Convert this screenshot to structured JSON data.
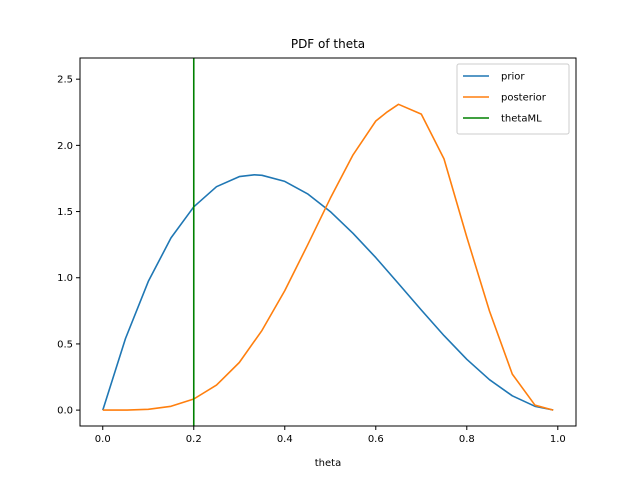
{
  "chart_data": {
    "type": "line",
    "title": "PDF of theta",
    "xlabel": "theta",
    "ylabel": "",
    "xlim": [
      -0.05,
      1.04
    ],
    "ylim": [
      -0.12,
      2.66
    ],
    "xticks": [
      0.0,
      0.2,
      0.4,
      0.6,
      0.8,
      1.0
    ],
    "xtick_labels": [
      "0.0",
      "0.2",
      "0.4",
      "0.6",
      "0.8",
      "1.0"
    ],
    "yticks": [
      0.0,
      0.5,
      1.0,
      1.5,
      2.0,
      2.5
    ],
    "ytick_labels": [
      "0.0",
      "0.5",
      "1.0",
      "1.5",
      "2.0",
      "2.5"
    ],
    "grid": false,
    "legend_position": "top-right",
    "series": [
      {
        "name": "prior",
        "color": "#1f77b4",
        "x": [
          0.0,
          0.05,
          0.1,
          0.15,
          0.2,
          0.25,
          0.3,
          0.333,
          0.35,
          0.4,
          0.45,
          0.5,
          0.55,
          0.6,
          0.65,
          0.7,
          0.75,
          0.8,
          0.85,
          0.9,
          0.95,
          0.99
        ],
        "y": [
          0.0,
          0.541,
          0.972,
          1.301,
          1.536,
          1.688,
          1.764,
          1.778,
          1.774,
          1.728,
          1.634,
          1.5,
          1.336,
          1.152,
          0.956,
          0.756,
          0.563,
          0.384,
          0.23,
          0.108,
          0.029,
          0.001
        ]
      },
      {
        "name": "posterior",
        "color": "#ff7f0e",
        "x": [
          0.0,
          0.05,
          0.1,
          0.15,
          0.2,
          0.25,
          0.3,
          0.35,
          0.4,
          0.45,
          0.5,
          0.55,
          0.6,
          0.625,
          0.65,
          0.7,
          0.75,
          0.8,
          0.85,
          0.9,
          0.95,
          0.99
        ],
        "y": [
          0.0,
          0.0,
          0.006,
          0.029,
          0.084,
          0.189,
          0.36,
          0.602,
          0.903,
          1.246,
          1.6,
          1.928,
          2.184,
          2.253,
          2.31,
          2.236,
          1.898,
          1.307,
          0.748,
          0.272,
          0.037,
          0.0
        ]
      },
      {
        "name": "thetaML",
        "color": "#008000",
        "type": "vline",
        "x": 0.2
      }
    ]
  }
}
